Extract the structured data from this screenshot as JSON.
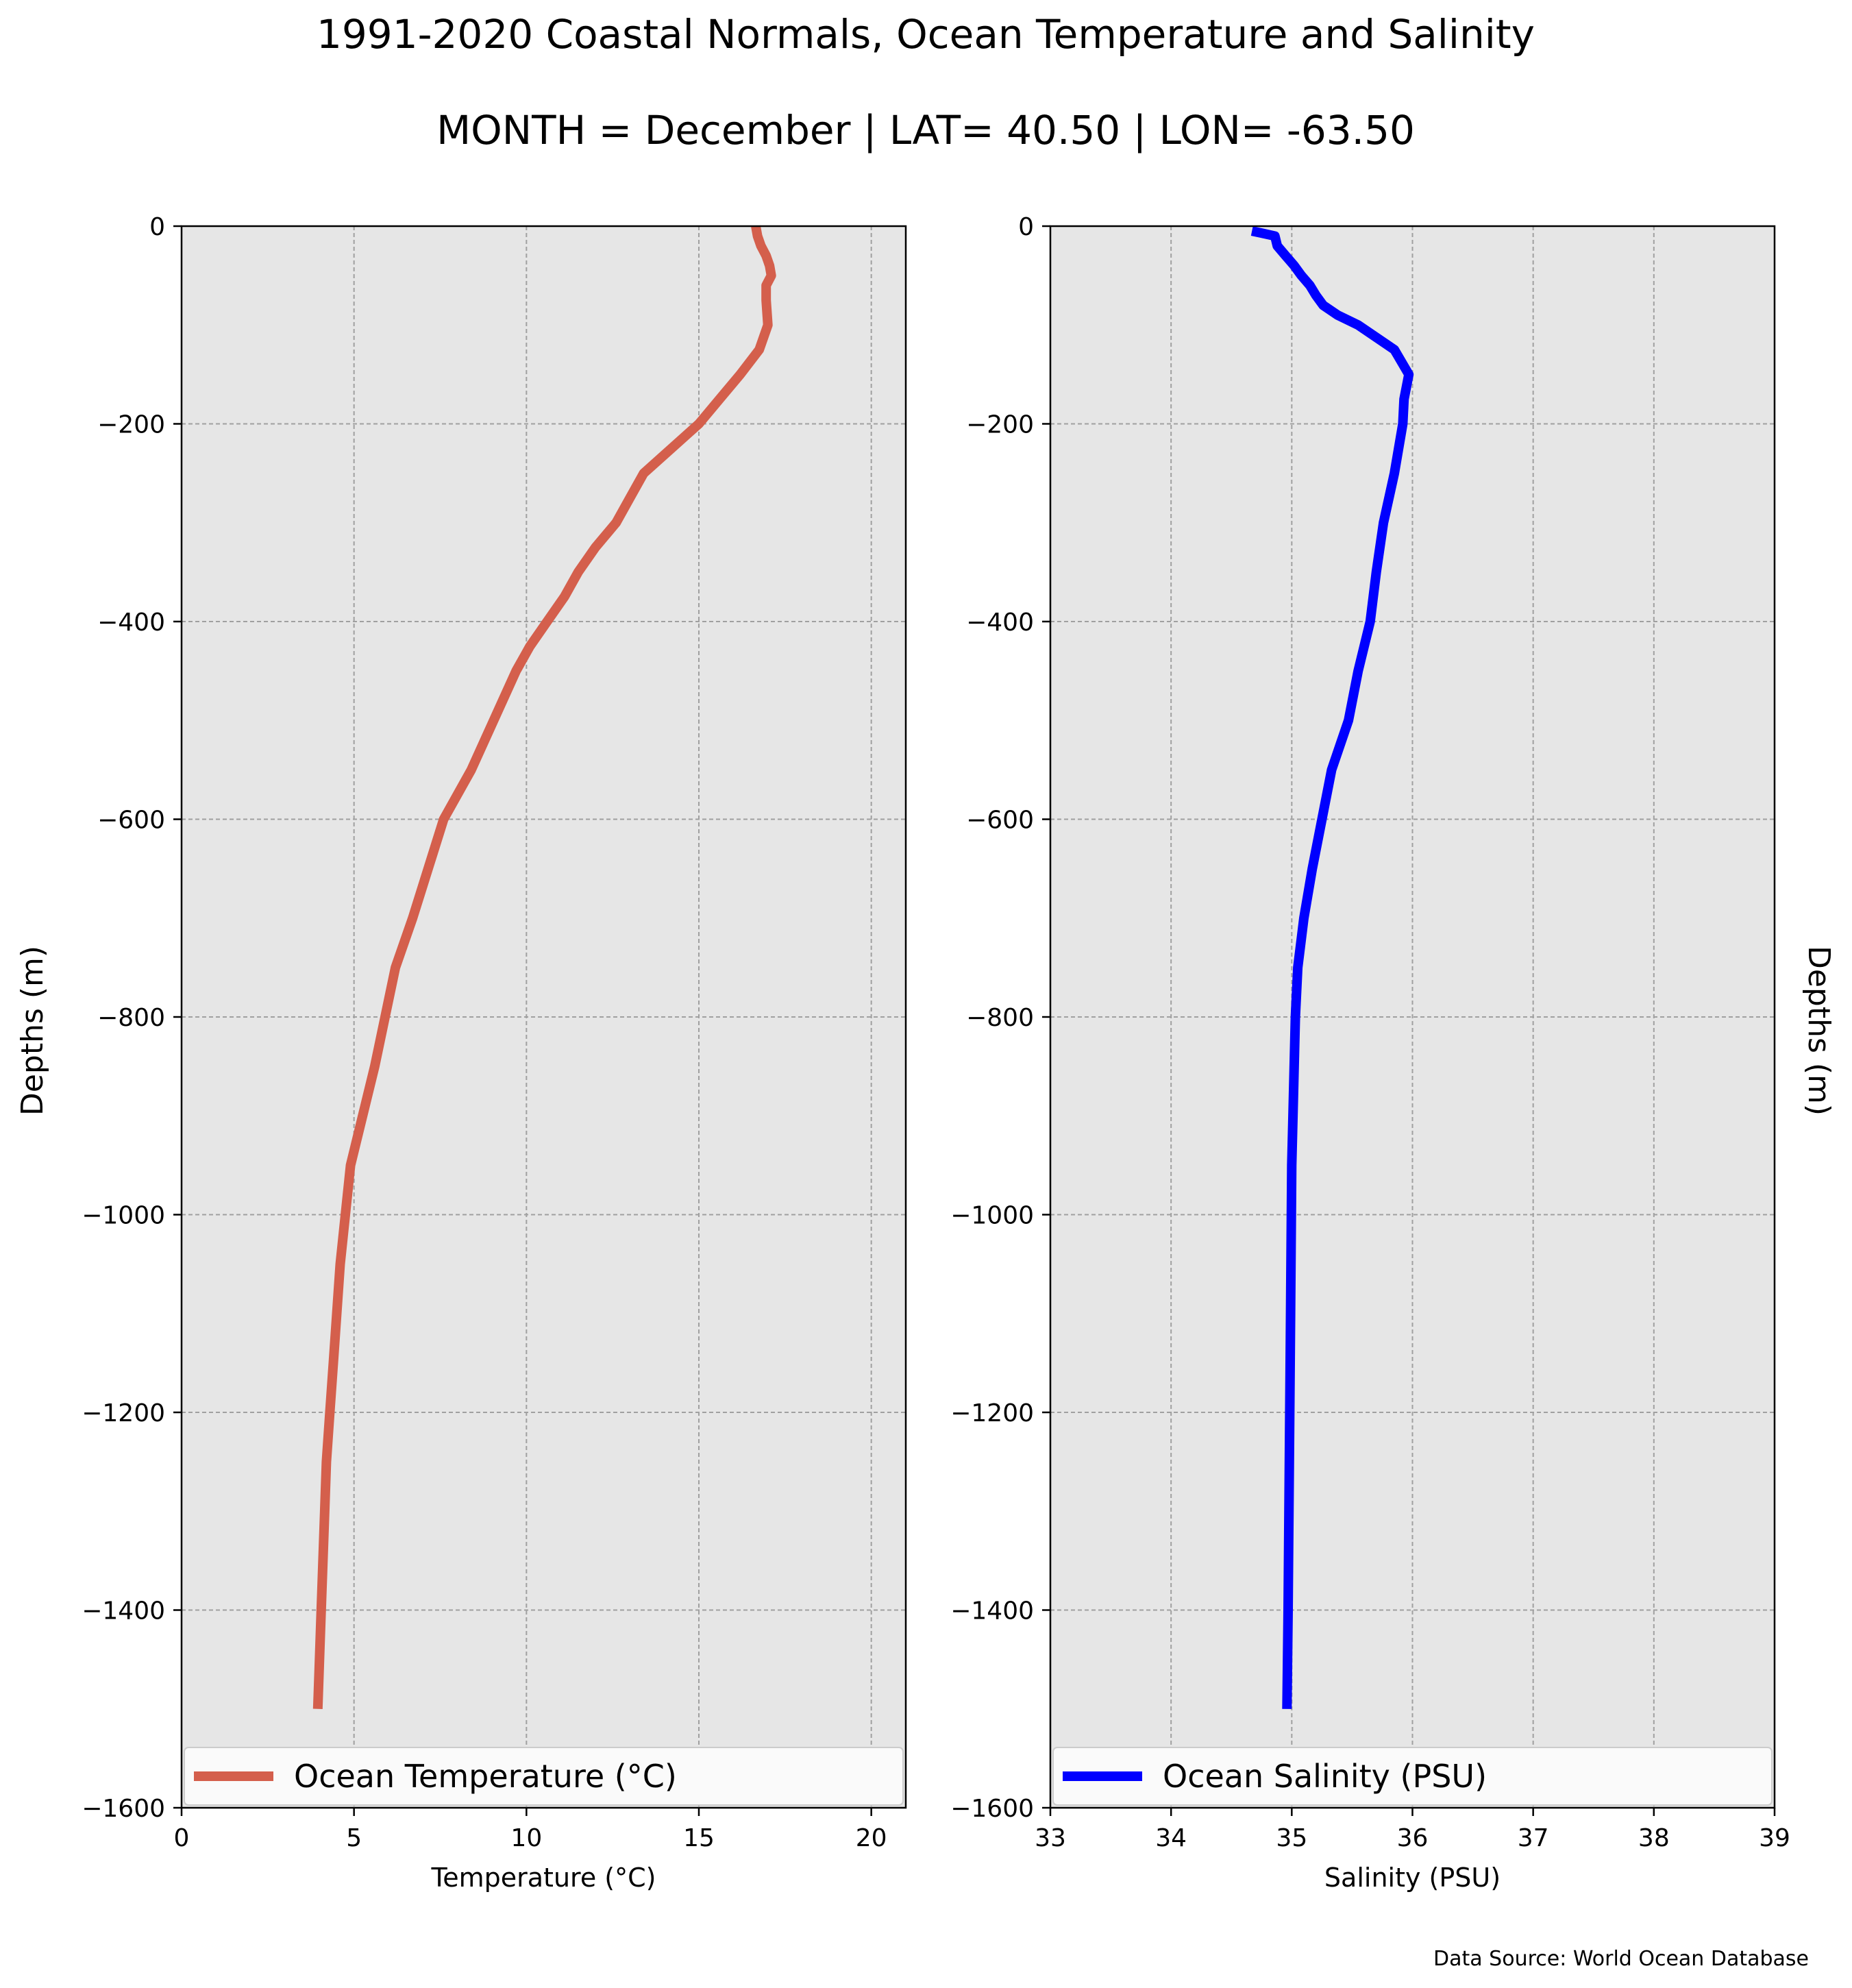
{
  "figure": {
    "title": "1991-2020 Coastal Normals, Ocean Temperature and Salinity",
    "subtitle": "MONTH = December | LAT= 40.50 | LON= -63.50",
    "source_note": "Data Source: World Ocean Database"
  },
  "colors": {
    "temperature_line": "#d45f4c",
    "salinity_line": "#0000ff",
    "plot_background": "#e6e6e6",
    "grid": "#a0a0a0"
  },
  "chart_data": [
    {
      "type": "line",
      "xlabel": "Temperature (°C)",
      "ylabel": "Depths (m)",
      "xlim": [
        0,
        21
      ],
      "ylim": [
        -1600,
        0
      ],
      "x_ticks": [
        "0",
        "5",
        "10",
        "15",
        "20"
      ],
      "x_tick_values": [
        0,
        5,
        10,
        15,
        20
      ],
      "y_ticks": [
        "0",
        "−200",
        "−400",
        "−600",
        "−800",
        "−1000",
        "−1200",
        "−1400",
        "−1600"
      ],
      "y_tick_values": [
        0,
        -200,
        -400,
        -600,
        -800,
        -1000,
        -1200,
        -1400,
        -1600
      ],
      "grid": true,
      "legend_position": "bottom",
      "series": [
        {
          "name": "Ocean Temperature (°C)",
          "color": "#d45f4c",
          "points": [
            [
              16.65,
              0
            ],
            [
              16.7,
              -10
            ],
            [
              16.8,
              -20
            ],
            [
              16.95,
              -30
            ],
            [
              17.05,
              -40
            ],
            [
              17.1,
              -50
            ],
            [
              16.95,
              -60
            ],
            [
              16.95,
              -75
            ],
            [
              17.0,
              -100
            ],
            [
              16.75,
              -125
            ],
            [
              16.2,
              -150
            ],
            [
              15.6,
              -175
            ],
            [
              15.0,
              -200
            ],
            [
              14.2,
              -225
            ],
            [
              13.4,
              -250
            ],
            [
              13.0,
              -275
            ],
            [
              12.6,
              -300
            ],
            [
              12.0,
              -325
            ],
            [
              11.5,
              -350
            ],
            [
              11.1,
              -375
            ],
            [
              10.6,
              -400
            ],
            [
              10.1,
              -425
            ],
            [
              9.7,
              -450
            ],
            [
              8.4,
              -550
            ],
            [
              7.6,
              -600
            ],
            [
              6.7,
              -700
            ],
            [
              6.2,
              -750
            ],
            [
              5.9,
              -800
            ],
            [
              5.6,
              -850
            ],
            [
              4.9,
              -950
            ],
            [
              4.6,
              -1050
            ],
            [
              4.5,
              -1100
            ],
            [
              4.4,
              -1150
            ],
            [
              4.3,
              -1200
            ],
            [
              4.2,
              -1250
            ],
            [
              4.15,
              -1300
            ],
            [
              4.05,
              -1400
            ],
            [
              4.0,
              -1450
            ],
            [
              3.95,
              -1500
            ]
          ]
        }
      ]
    },
    {
      "type": "line",
      "xlabel": "Salinity (PSU)",
      "ylabel": "Depths (m)",
      "xlim": [
        33,
        39
      ],
      "ylim": [
        -1600,
        0
      ],
      "x_ticks": [
        "33",
        "34",
        "35",
        "36",
        "37",
        "38",
        "39"
      ],
      "x_tick_values": [
        33,
        34,
        35,
        36,
        37,
        38,
        39
      ],
      "y_ticks": [
        "0",
        "−200",
        "−400",
        "−600",
        "−800",
        "−1000",
        "−1200",
        "−1400",
        "−1600"
      ],
      "y_tick_values": [
        0,
        -200,
        -400,
        -600,
        -800,
        -1000,
        -1200,
        -1400,
        -1600
      ],
      "grid": true,
      "legend_position": "bottom",
      "series": [
        {
          "name": "Ocean Salinity (PSU)",
          "color": "#0000ff",
          "points": [
            [
              34.67,
              -5
            ],
            [
              34.75,
              -7
            ],
            [
              34.86,
              -10
            ],
            [
              34.88,
              -20
            ],
            [
              34.95,
              -30
            ],
            [
              35.02,
              -40
            ],
            [
              35.08,
              -50
            ],
            [
              35.15,
              -60
            ],
            [
              35.2,
              -70
            ],
            [
              35.26,
              -80
            ],
            [
              35.38,
              -90
            ],
            [
              35.55,
              -100
            ],
            [
              35.85,
              -125
            ],
            [
              35.97,
              -150
            ],
            [
              35.93,
              -175
            ],
            [
              35.92,
              -200
            ],
            [
              35.85,
              -250
            ],
            [
              35.76,
              -300
            ],
            [
              35.7,
              -350
            ],
            [
              35.65,
              -400
            ],
            [
              35.55,
              -450
            ],
            [
              35.47,
              -500
            ],
            [
              35.33,
              -550
            ],
            [
              35.25,
              -600
            ],
            [
              35.17,
              -650
            ],
            [
              35.1,
              -700
            ],
            [
              35.05,
              -750
            ],
            [
              35.03,
              -800
            ],
            [
              35.01,
              -900
            ],
            [
              35.0,
              -950
            ],
            [
              34.99,
              -1100
            ],
            [
              34.98,
              -1250
            ],
            [
              34.97,
              -1400
            ],
            [
              34.96,
              -1500
            ]
          ]
        }
      ]
    }
  ]
}
